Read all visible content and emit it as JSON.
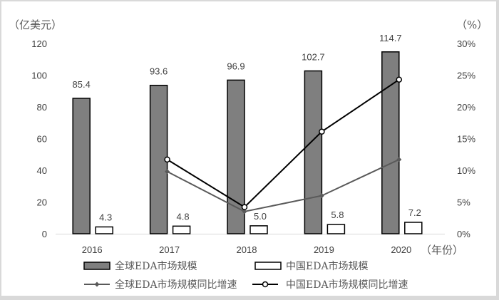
{
  "chart_data": {
    "type": "bar",
    "title": "",
    "categories": [
      "2016",
      "2017",
      "2018",
      "2019",
      "2020"
    ],
    "xlabel": "（年份）",
    "ylabel_left": "（亿美元）",
    "ylabel_right": "（%）",
    "ylim_left": [
      0,
      120
    ],
    "yticks_left": [
      "0",
      "20",
      "40",
      "60",
      "80",
      "100",
      "120"
    ],
    "ylim_right": [
      0,
      30
    ],
    "yticks_right": [
      "0%",
      "5%",
      "10%",
      "15%",
      "20%",
      "25%",
      "30%"
    ],
    "grid": false,
    "legend_position": "bottom",
    "series": [
      {
        "name": "全球EDA市场规模",
        "type": "bar",
        "axis": "left",
        "color": "#7f7f7f",
        "values": [
          85.4,
          93.6,
          96.9,
          102.7,
          114.7
        ],
        "labels": [
          "85.4",
          "93.6",
          "96.9",
          "102.7",
          "114.7"
        ]
      },
      {
        "name": "中国EDA市场规模",
        "type": "bar",
        "axis": "left",
        "color": "#ffffff",
        "values": [
          4.3,
          4.8,
          5.0,
          5.8,
          7.2
        ],
        "labels": [
          "4.3",
          "4.8",
          "5.0",
          "5.8",
          "7.2"
        ]
      },
      {
        "name": "全球EDA市场规模同比增速",
        "type": "line",
        "axis": "right",
        "color": "#595959",
        "marker": "diamond",
        "values": [
          null,
          9.8,
          3.5,
          6.0,
          11.7
        ]
      },
      {
        "name": "中国EDA市场规模同比增速",
        "type": "line",
        "axis": "right",
        "color": "#000000",
        "marker": "open-circle",
        "values": [
          null,
          11.7,
          4.2,
          16.1,
          24.3
        ]
      }
    ]
  }
}
